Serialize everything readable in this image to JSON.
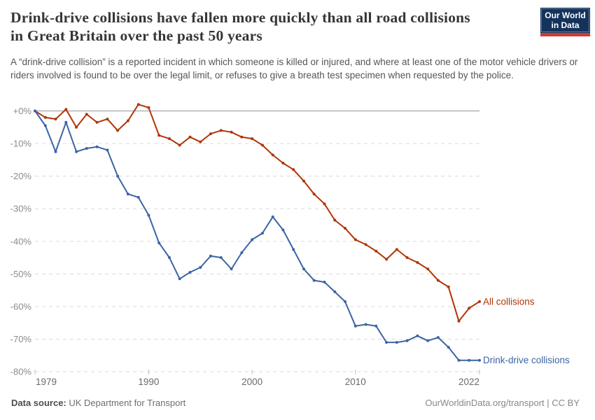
{
  "header": {
    "title_lines": [
      "Drink-drive collisions have fallen more quickly than all road collisions",
      "in Great Britain over the past 50 years"
    ],
    "subtitle": "A “drink-drive collision” is a reported incident in which someone is killed or injured, and where at least one of the motor vehicle drivers or riders involved is found to be over the legal limit, or refuses to give a breath test specimen when requested by the police.",
    "logo": {
      "line1": "Our World",
      "line2": "in Data",
      "bg_color": "#14335c",
      "stripe_color": "#d13c32"
    }
  },
  "chart_data": {
    "type": "line",
    "x": [
      1979,
      1980,
      1981,
      1982,
      1983,
      1984,
      1985,
      1986,
      1987,
      1988,
      1989,
      1990,
      1991,
      1992,
      1993,
      1994,
      1995,
      1996,
      1997,
      1998,
      1999,
      2000,
      2001,
      2002,
      2003,
      2004,
      2005,
      2006,
      2007,
      2008,
      2009,
      2010,
      2011,
      2012,
      2013,
      2014,
      2015,
      2016,
      2017,
      2018,
      2019,
      2020,
      2021,
      2022
    ],
    "series": [
      {
        "name": "All collisions",
        "color": "#b13507",
        "values": [
          0,
          -2,
          -2.5,
          0.5,
          -5,
          -1,
          -3.5,
          -2.5,
          -6,
          -3,
          2,
          1,
          -7.5,
          -8.5,
          -10.5,
          -8,
          -9.5,
          -7,
          -6,
          -6.5,
          -8,
          -8.5,
          -10.5,
          -13.5,
          -16,
          -18,
          -21.5,
          -25.5,
          -28.5,
          -33.5,
          -36,
          -39.5,
          -41,
          -43,
          -45.5,
          -42.5,
          -45,
          -46.5,
          -48.5,
          -52,
          -54,
          -64.5,
          -60.5,
          -58.5
        ]
      },
      {
        "name": "Drink-drive collisions",
        "color": "#3d64a4",
        "values": [
          0,
          -4.5,
          -12.5,
          -3.5,
          -12.5,
          -11.5,
          -11,
          -12,
          -20,
          -25.5,
          -26.5,
          -32,
          -40.5,
          -45,
          -51.5,
          -49.5,
          -48,
          -44.5,
          -45,
          -48.5,
          -43.5,
          -39.5,
          -37.5,
          -32.5,
          -36.5,
          -42.5,
          -48.5,
          -52,
          -52.5,
          -55.5,
          -58.5,
          -66,
          -65.5,
          -66,
          -71,
          -71,
          -70.5,
          -69,
          -70.5,
          -69.5,
          -72.5,
          -76.5,
          -76.5,
          -76.5
        ]
      }
    ],
    "ylim": [
      -80,
      3
    ],
    "yticks": [
      0,
      -10,
      -20,
      -30,
      -40,
      -50,
      -60,
      -70,
      -80
    ],
    "ytick_labels": [
      "+0%",
      "-10%",
      "-20%",
      "-30%",
      "-40%",
      "-50%",
      "-60%",
      "-70%",
      "-80%"
    ],
    "xticks": [
      1979,
      1990,
      2000,
      2010,
      2022
    ],
    "grid": "horizontal-dashed",
    "zero_line": "solid",
    "legend_position": "line-end-labels"
  },
  "footer": {
    "source_label": "Data source:",
    "source_value": " UK Department for Transport",
    "attribution": "OurWorldinData.org/transport | CC BY"
  }
}
